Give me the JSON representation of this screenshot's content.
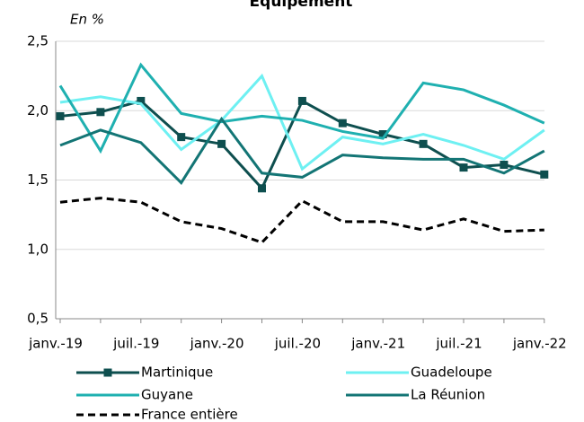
{
  "chart_data": {
    "type": "line",
    "title": "Equipement",
    "y_label": "En %",
    "categories": [
      "janv.-19",
      null,
      "juil.-19",
      null,
      "janv.-20",
      null,
      "juil.-20",
      null,
      "janv.-21",
      null,
      "juil.-21",
      null,
      "janv.-22"
    ],
    "series": [
      {
        "name": "Martinique",
        "color": "#0e4f4f",
        "marker": "square",
        "values": [
          1.96,
          1.99,
          2.07,
          1.81,
          1.76,
          1.44,
          2.07,
          1.91,
          1.83,
          1.76,
          1.59,
          1.61,
          1.54
        ]
      },
      {
        "name": "Guadeloupe",
        "color": "#6ef0f2",
        "values": [
          2.06,
          2.1,
          2.05,
          1.72,
          1.93,
          2.25,
          1.58,
          1.81,
          1.76,
          1.83,
          1.75,
          1.65,
          1.86
        ]
      },
      {
        "name": "Guyane",
        "color": "#1fb0b0",
        "values": [
          2.18,
          1.71,
          2.33,
          1.98,
          1.92,
          1.96,
          1.93,
          1.85,
          1.8,
          2.2,
          2.15,
          2.04,
          1.91
        ]
      },
      {
        "name": "La Réunion",
        "color": "#137575",
        "values": [
          1.75,
          1.86,
          1.77,
          1.48,
          1.94,
          1.55,
          1.52,
          1.68,
          1.66,
          1.65,
          1.65,
          1.55,
          1.71
        ]
      },
      {
        "name": "France entière",
        "color": "#000000",
        "dash": true,
        "values": [
          1.34,
          1.37,
          1.34,
          1.2,
          1.15,
          1.05,
          1.35,
          1.2,
          1.2,
          1.14,
          1.22,
          1.13,
          1.14
        ]
      }
    ],
    "ylim": [
      0.5,
      2.5
    ],
    "yticks": [
      {
        "value": 0.5,
        "label": "0,5"
      },
      {
        "value": 1.0,
        "label": "1,0"
      },
      {
        "value": 1.5,
        "label": "1,5"
      },
      {
        "value": 2.0,
        "label": "2,0"
      },
      {
        "value": 2.5,
        "label": "2,5"
      }
    ],
    "grid": true
  }
}
